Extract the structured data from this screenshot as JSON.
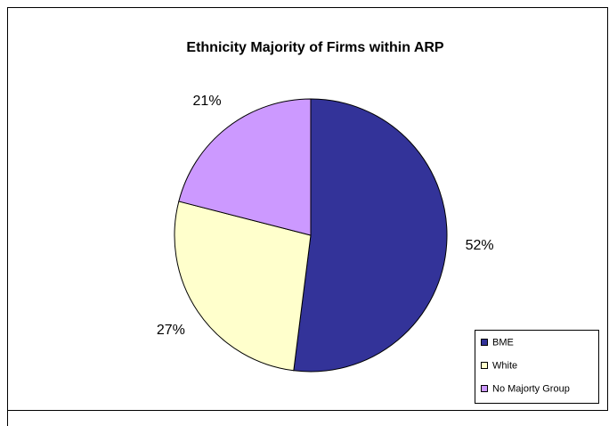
{
  "chart_data": {
    "type": "pie",
    "title": "Ethnicity Majority of Firms within ARP",
    "categories": [
      "BME",
      "White",
      "No Majorty Group"
    ],
    "values": [
      52,
      27,
      21
    ],
    "value_labels": [
      "52%",
      "27%",
      "21%"
    ],
    "colors": [
      "#333399",
      "#FFFFCC",
      "#CC99FF"
    ],
    "legend": "bottom-right"
  }
}
